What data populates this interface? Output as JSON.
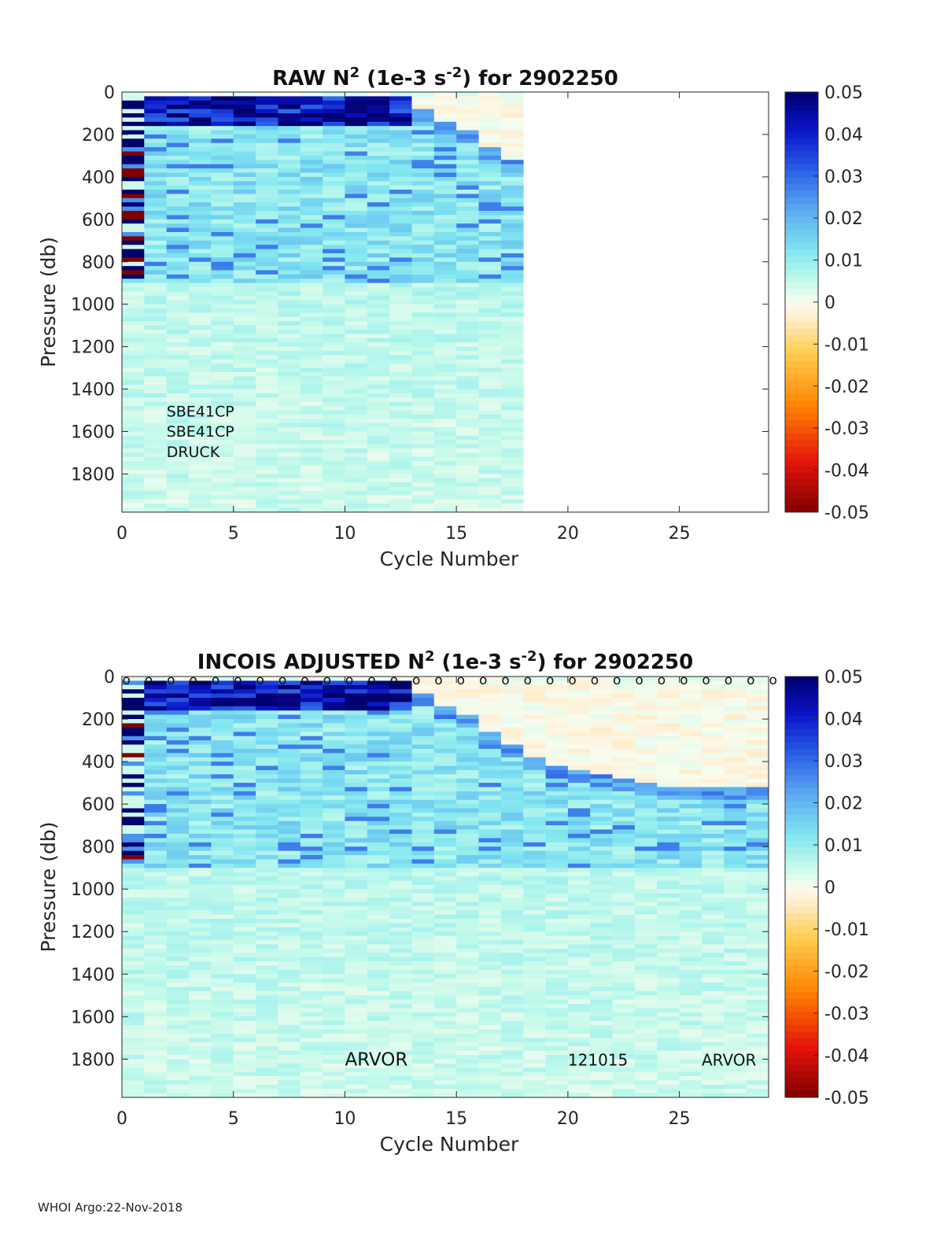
{
  "footer": "WHOI Argo:22-Nov-2018",
  "chart_data": [
    {
      "type": "heatmap",
      "title": {
        "prefix": "RAW N",
        "sup1": "2",
        "mid": " (1e-3 s",
        "sup2": "-2",
        "suffix": ") for 2902250"
      },
      "xlabel": "Cycle Number",
      "ylabel": "Pressure (db)",
      "xlim": [
        0,
        29
      ],
      "ylim": [
        0,
        1980
      ],
      "y_reversed": true,
      "xticks": [
        "0",
        "5",
        "10",
        "15",
        "20",
        "25"
      ],
      "yticks": [
        "0",
        "200",
        "400",
        "600",
        "800",
        "1000",
        "1200",
        "1400",
        "1600",
        "1800"
      ],
      "colorbar": {
        "min": -0.05,
        "max": 0.05,
        "ticks": [
          "0.05",
          "0.04",
          "0.03",
          "0.02",
          "0.01",
          "0",
          "-0.01",
          "-0.02",
          "-0.03",
          "-0.04",
          "-0.05"
        ]
      },
      "cycles_with_data": [
        1,
        18
      ],
      "mixed_layer_base_db": [
        0,
        0,
        0,
        0,
        0,
        0,
        0,
        0,
        0,
        0,
        0,
        0,
        0,
        80,
        130,
        180,
        260,
        320
      ],
      "background_n2": 0.009,
      "annotations": [
        {
          "text": "SBE41CP",
          "x": 2,
          "y": 1500
        },
        {
          "text": "SBE41CP",
          "x": 2,
          "y": 1595
        },
        {
          "text": "DRUCK",
          "x": 2,
          "y": 1690
        }
      ],
      "cycle_markers": []
    },
    {
      "type": "heatmap",
      "title": {
        "prefix": "INCOIS  ADJUSTED N",
        "sup1": "2",
        "mid": " (1e-3 s",
        "sup2": "-2",
        "suffix": ") for 2902250"
      },
      "xlabel": "Cycle Number",
      "ylabel": "Pressure (db)",
      "xlim": [
        0,
        29
      ],
      "ylim": [
        0,
        1980
      ],
      "y_reversed": true,
      "xticks": [
        "0",
        "5",
        "10",
        "15",
        "20",
        "25"
      ],
      "yticks": [
        "0",
        "200",
        "400",
        "600",
        "800",
        "1000",
        "1200",
        "1400",
        "1600",
        "1800"
      ],
      "colorbar": {
        "min": -0.05,
        "max": 0.05,
        "ticks": [
          "0.05",
          "0.04",
          "0.03",
          "0.02",
          "0.01",
          "0",
          "-0.01",
          "-0.02",
          "-0.03",
          "-0.04",
          "-0.05"
        ]
      },
      "cycles_with_data": [
        1,
        29
      ],
      "mixed_layer_base_db": [
        0,
        0,
        0,
        0,
        0,
        0,
        0,
        0,
        0,
        0,
        0,
        0,
        0,
        80,
        130,
        180,
        260,
        320,
        380,
        420,
        440,
        460,
        480,
        500,
        510,
        520,
        520,
        520,
        520
      ],
      "background_n2": 0.009,
      "annotations": [
        {
          "text": "ARVOR",
          "x": 10,
          "y": 1800
        },
        {
          "text": "121015",
          "x": 20,
          "y": 1800
        },
        {
          "text": "ARVOR",
          "x": 26,
          "y": 1800
        }
      ],
      "cycle_markers": {
        "symbol": "o",
        "cycles": [
          0,
          1,
          2,
          3,
          4,
          5,
          6,
          7,
          8,
          9,
          10,
          11,
          12,
          13,
          14,
          15,
          16,
          17,
          18,
          19,
          20,
          21,
          22,
          23,
          24,
          25,
          26,
          27,
          28,
          29
        ]
      }
    }
  ]
}
